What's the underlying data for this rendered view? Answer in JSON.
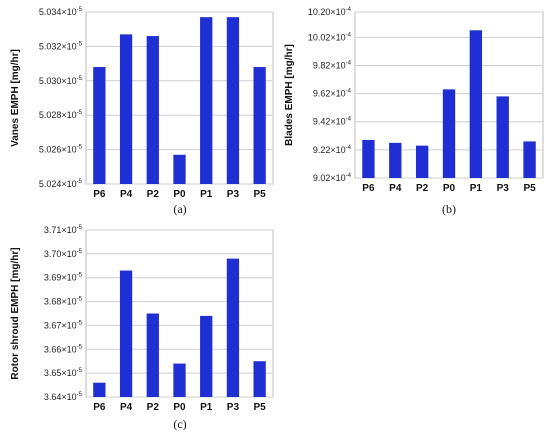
{
  "chart_data": [
    {
      "type": "bar",
      "panel": "(a)",
      "ylabel": "Vanes EMPH [mg/hr]",
      "categories": [
        "P6",
        "P4",
        "P2",
        "P0",
        "P1",
        "P3",
        "P5"
      ],
      "values": [
        5.0308e-05,
        5.0327e-05,
        5.0326e-05,
        5.0257e-05,
        5.0337e-05,
        5.0337e-05,
        5.0308e-05
      ],
      "ylim": [
        5.024e-05,
        5.034e-05
      ],
      "yticks": [
        {
          "v": 5.024e-05,
          "m": "5.024",
          "e": "-5"
        },
        {
          "v": 5.026e-05,
          "m": "5.026",
          "e": "-5"
        },
        {
          "v": 5.028e-05,
          "m": "5.028",
          "e": "-5"
        },
        {
          "v": 5.03e-05,
          "m": "5.030",
          "e": "-5"
        },
        {
          "v": 5.032e-05,
          "m": "5.032",
          "e": "-5"
        },
        {
          "v": 5.034e-05,
          "m": "5.034",
          "e": "-5"
        }
      ],
      "grid": true,
      "bar_color": "#1f2fd4"
    },
    {
      "type": "bar",
      "panel": "(b)",
      "ylabel": "Blades EMPH [mg/hr]",
      "categories": [
        "P6",
        "P4",
        "P2",
        "P0",
        "P1",
        "P3",
        "P5"
      ],
      "values": [
        0.000929,
        0.000927,
        0.000925,
        0.000965,
        0.001007,
        0.00096,
        0.000928
      ],
      "ylim": [
        0.000902,
        0.00102
      ],
      "yticks": [
        {
          "v": 0.000902,
          "m": "9.02",
          "e": "-4"
        },
        {
          "v": 0.000922,
          "m": "9.22",
          "e": "-4"
        },
        {
          "v": 0.000942,
          "m": "9.42",
          "e": "-4"
        },
        {
          "v": 0.000962,
          "m": "9.62",
          "e": "-4"
        },
        {
          "v": 0.000982,
          "m": "9.82",
          "e": "-4"
        },
        {
          "v": 0.001002,
          "m": "10.02",
          "e": "-4"
        },
        {
          "v": 0.00102,
          "m": "10.20",
          "e": "-4"
        }
      ],
      "grid": true,
      "bar_color": "#1f2fd4"
    },
    {
      "type": "bar",
      "panel": "(c)",
      "ylabel": "Rotor shroud EMPH [mg/hr]",
      "categories": [
        "P6",
        "P4",
        "P2",
        "P0",
        "P1",
        "P3",
        "P5"
      ],
      "values": [
        3.646e-05,
        3.693e-05,
        3.675e-05,
        3.654e-05,
        3.674e-05,
        3.698e-05,
        3.655e-05
      ],
      "ylim": [
        3.64e-05,
        3.71e-05
      ],
      "yticks": [
        {
          "v": 3.64e-05,
          "m": "3.64",
          "e": "-5"
        },
        {
          "v": 3.65e-05,
          "m": "3.65",
          "e": "-5"
        },
        {
          "v": 3.66e-05,
          "m": "3.66",
          "e": "-5"
        },
        {
          "v": 3.67e-05,
          "m": "3.67",
          "e": "-5"
        },
        {
          "v": 3.68e-05,
          "m": "3.68",
          "e": "-5"
        },
        {
          "v": 3.69e-05,
          "m": "3.69",
          "e": "-5"
        },
        {
          "v": 3.7e-05,
          "m": "3.70",
          "e": "-5"
        },
        {
          "v": 3.71e-05,
          "m": "3.71",
          "e": "-5"
        }
      ],
      "grid": true,
      "bar_color": "#1f2fd4"
    }
  ]
}
